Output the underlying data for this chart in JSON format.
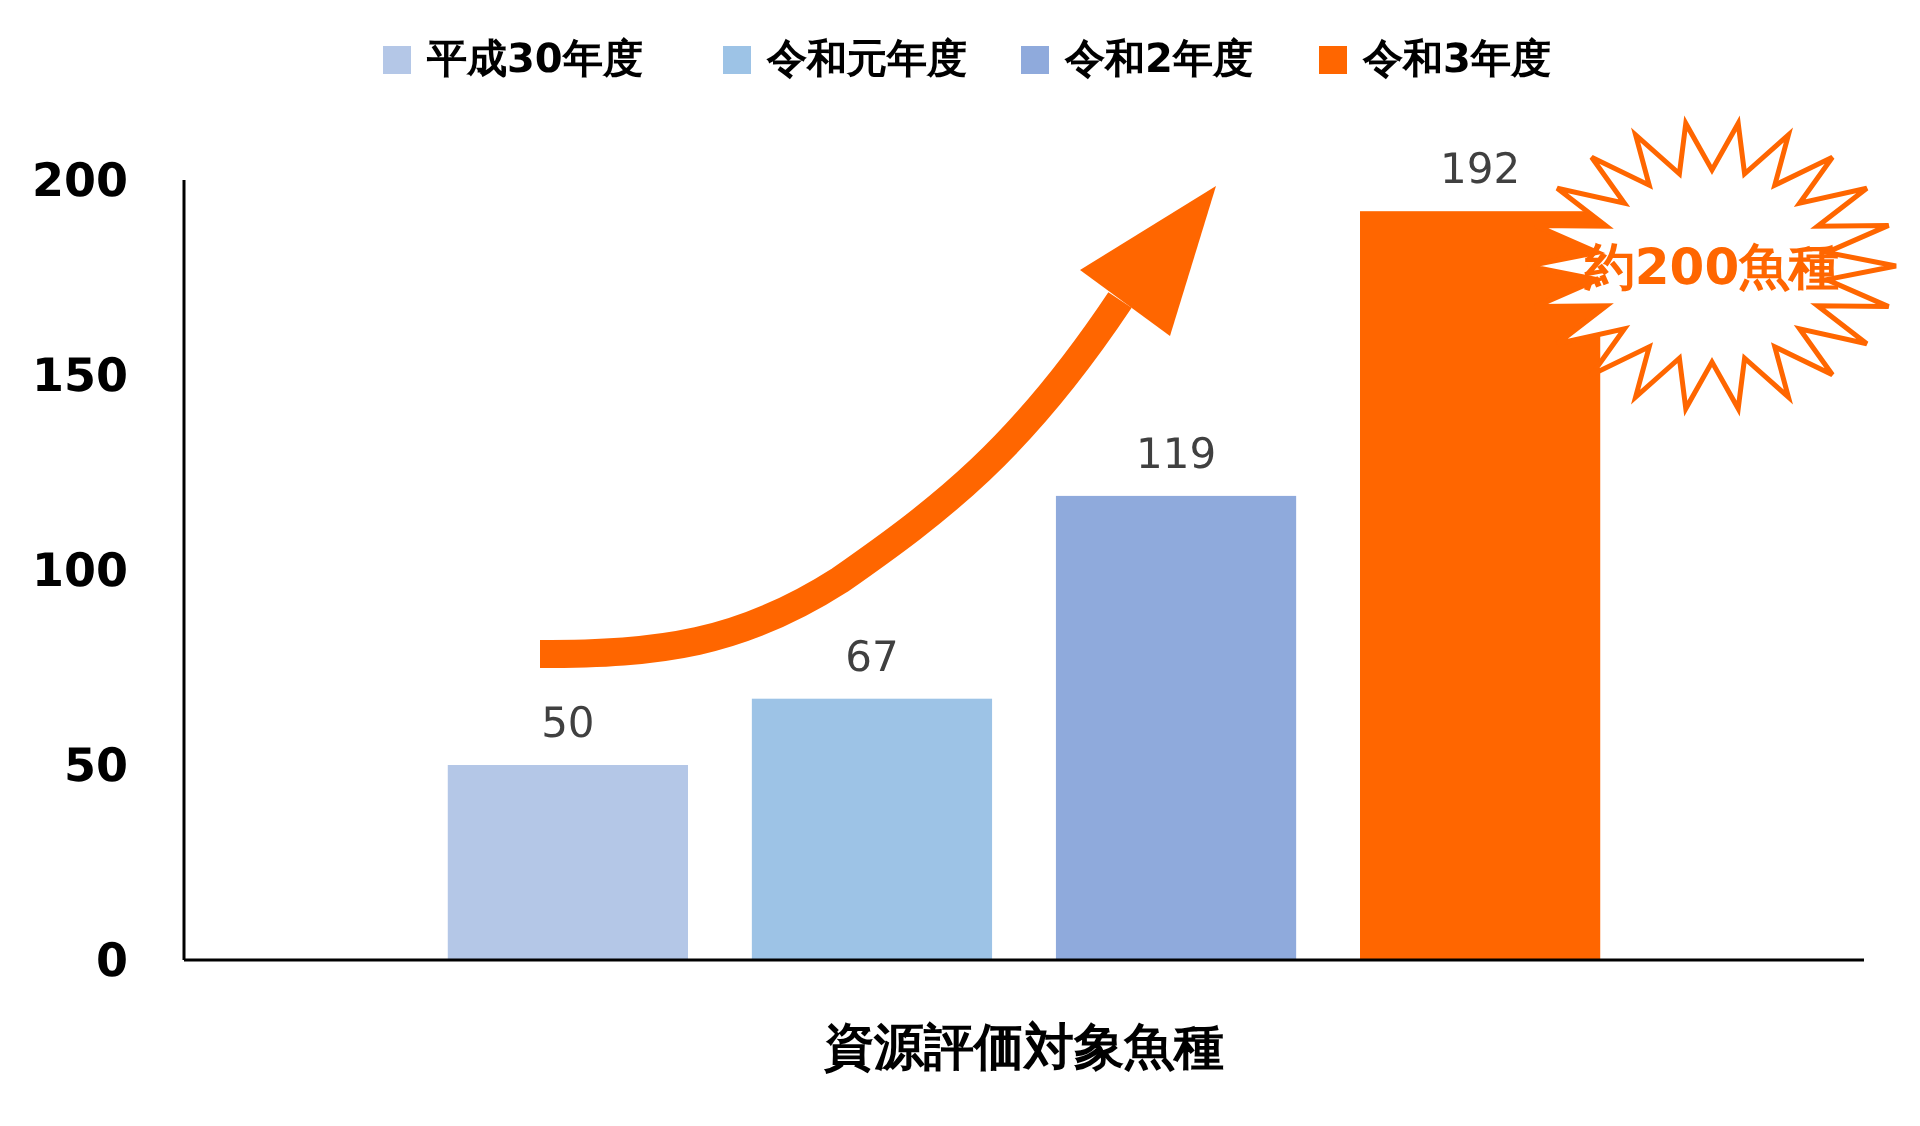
{
  "chart_data": {
    "type": "bar",
    "categories": [
      "資源評価対象魚種"
    ],
    "series": [
      {
        "name": "平成30年度",
        "color": "#b4c7e7",
        "values": [
          50
        ]
      },
      {
        "name": "令和元年度",
        "color": "#9dc3e6",
        "values": [
          67
        ]
      },
      {
        "name": "令和2年度",
        "color": "#8faadc",
        "values": [
          119
        ]
      },
      {
        "name": "令和3年度",
        "color": "#ff6600",
        "values": [
          192
        ]
      }
    ],
    "ylim": [
      0,
      200
    ],
    "yticks": [
      0,
      50,
      100,
      150,
      200
    ],
    "data_labels": true,
    "legend": "top",
    "grid": false,
    "annotations": [
      "約200魚種"
    ]
  }
}
